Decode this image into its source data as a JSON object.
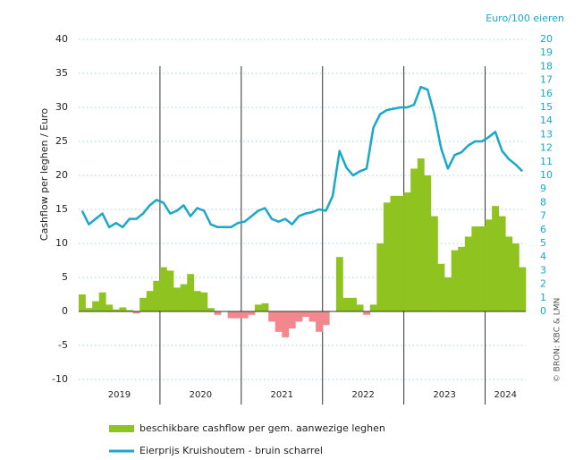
{
  "chart_data": {
    "type": "bar_line",
    "ylabel": "Cashflow per leghen / Euro",
    "y2label": "Euro/100 eieren",
    "source": "© BRON: KBC & LMN",
    "year_labels": [
      "2019",
      "2020",
      "2021",
      "2022",
      "2023",
      "2024"
    ],
    "ylim": [
      -10,
      40
    ],
    "yticks": [
      -10,
      -5,
      0,
      5,
      10,
      15,
      20,
      25,
      30,
      35,
      40
    ],
    "y2lim": [
      -5,
      20
    ],
    "y2ticks": [
      0,
      1,
      2,
      3,
      4,
      5,
      6,
      7,
      8,
      9,
      10,
      11,
      12,
      13,
      14,
      15,
      16,
      17,
      18,
      19,
      20
    ],
    "grid": true,
    "series": [
      {
        "name": "beschikbare cashflow per gem. aanwezige leghen",
        "type": "bar",
        "color": "#8fc31f",
        "negative_color": "#f4878d",
        "values": [
          2.5,
          0.5,
          1.5,
          2.8,
          1,
          0.3,
          0.6,
          0.2,
          -0.3,
          2,
          3,
          4.5,
          6.5,
          6,
          3.5,
          4,
          5.5,
          3,
          2.8,
          0.5,
          -0.5,
          0,
          -1,
          -1,
          -1,
          -0.5,
          1,
          1.2,
          -1.5,
          -3,
          -3.8,
          -2.5,
          -1.5,
          -0.8,
          -1.5,
          -3,
          -2,
          0,
          8,
          2,
          2,
          1,
          -0.5,
          1,
          10,
          16,
          17,
          17,
          17.5,
          21,
          22.5,
          20,
          14,
          7,
          5,
          9,
          9.5,
          11,
          12.5,
          12.5,
          13.5,
          15.5,
          14,
          11,
          10,
          6.5
        ]
      },
      {
        "name": "Eierprijs Kruishoutem - bruin scharrel",
        "type": "line",
        "axis": "y2",
        "color": "#1aa7c9",
        "values": [
          7.4,
          6.4,
          6.8,
          7.2,
          6.2,
          6.5,
          6.2,
          6.8,
          6.8,
          7.2,
          7.8,
          8.2,
          8,
          7.2,
          7.4,
          7.8,
          7,
          7.6,
          7.4,
          6.4,
          6.2,
          6.2,
          6.2,
          6.5,
          6.6,
          7,
          7.4,
          7.6,
          6.8,
          6.6,
          6.8,
          6.4,
          7,
          7.2,
          7.3,
          7.5,
          7.4,
          8.5,
          11.8,
          10.6,
          10,
          10.3,
          10.5,
          13.5,
          14.5,
          14.8,
          14.9,
          15,
          15,
          15.2,
          16.5,
          16.3,
          14.5,
          12,
          10.5,
          11.5,
          11.7,
          12.2,
          12.5,
          12.5,
          12.8,
          13.2,
          11.8,
          11.2,
          10.8,
          10.3
        ]
      }
    ]
  }
}
